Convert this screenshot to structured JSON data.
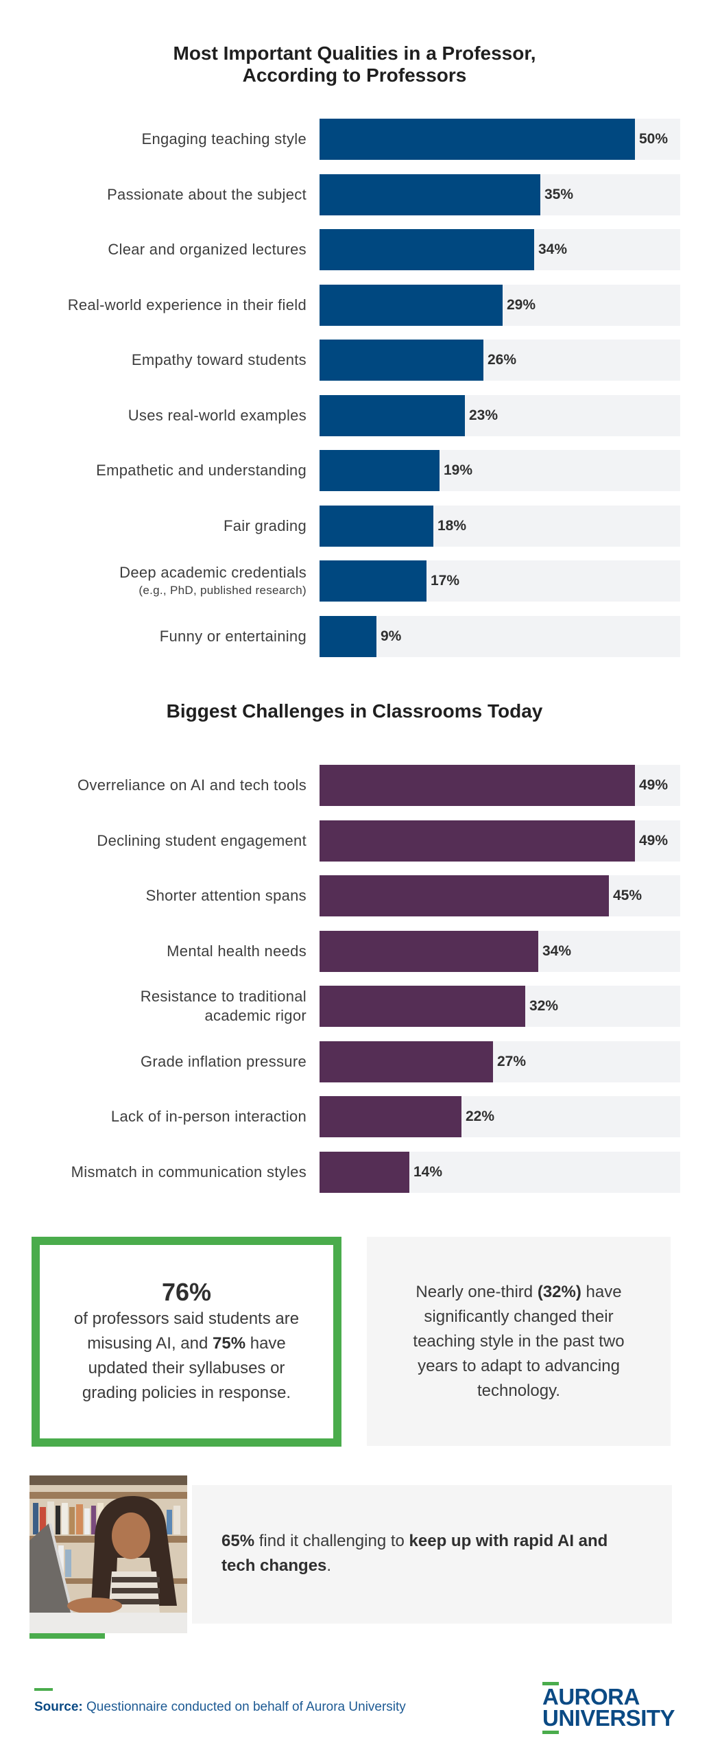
{
  "chart_data": [
    {
      "type": "bar",
      "orientation": "horizontal",
      "title": "Most Important Qualities in a Professor, According to Professors",
      "title_lines": [
        "Most Important Qualities in a Professor,",
        "According to Professors"
      ],
      "color": "#004880",
      "unit": "%",
      "categories": [
        "Engaging teaching style",
        "Passionate about the subject",
        "Clear and organized lectures",
        "Real-world experience in their field",
        "Empathy toward students",
        "Uses real-world examples",
        "Empathetic and understanding",
        "Fair grading",
        "Deep academic credentials (e.g., PhD, published research)",
        "Funny or entertaining"
      ],
      "items": [
        {
          "label": "Engaging teaching style",
          "sublabel": "",
          "value": 50,
          "value_label": "50%"
        },
        {
          "label": "Passionate about the subject",
          "sublabel": "",
          "value": 35,
          "value_label": "35%"
        },
        {
          "label": "Clear and organized lectures",
          "sublabel": "",
          "value": 34,
          "value_label": "34%"
        },
        {
          "label": "Real-world experience in their field",
          "sublabel": "",
          "value": 29,
          "value_label": "29%"
        },
        {
          "label": "Empathy toward students",
          "sublabel": "",
          "value": 26,
          "value_label": "26%"
        },
        {
          "label": "Uses real-world examples",
          "sublabel": "",
          "value": 23,
          "value_label": "23%"
        },
        {
          "label": "Empathetic and understanding",
          "sublabel": "",
          "value": 19,
          "value_label": "19%"
        },
        {
          "label": "Fair grading",
          "sublabel": "",
          "value": 18,
          "value_label": "18%"
        },
        {
          "label": "Deep academic credentials",
          "sublabel": "(e.g., PhD, published research)",
          "value": 17,
          "value_label": "17%"
        },
        {
          "label": "Funny or entertaining",
          "sublabel": "",
          "value": 9,
          "value_label": "9%"
        }
      ],
      "values": [
        50,
        35,
        34,
        29,
        26,
        23,
        19,
        18,
        17,
        9
      ],
      "xlim": [
        0,
        57
      ],
      "grid": false,
      "legend": "none"
    },
    {
      "type": "bar",
      "orientation": "horizontal",
      "title": "Biggest Challenges in Classrooms Today",
      "title_lines": [
        "Biggest Challenges in Classrooms Today"
      ],
      "color": "#552e55",
      "unit": "%",
      "categories": [
        "Overreliance on AI and tech tools",
        "Declining student engagement",
        "Shorter attention spans",
        "Mental health needs",
        "Resistance to traditional academic rigor",
        "Grade inflation pressure",
        "Lack of in-person interaction",
        "Mismatch in communication styles"
      ],
      "items": [
        {
          "label": "Overreliance on AI and tech tools",
          "sublabel": "",
          "value": 49,
          "value_label": "49%"
        },
        {
          "label": "Declining student engagement",
          "sublabel": "",
          "value": 49,
          "value_label": "49%"
        },
        {
          "label": "Shorter attention spans",
          "sublabel": "",
          "value": 45,
          "value_label": "45%"
        },
        {
          "label": "Mental health needs",
          "sublabel": "",
          "value": 34,
          "value_label": "34%"
        },
        {
          "label": "Resistance to traditional",
          "sublabel": "academic rigor",
          "value": 32,
          "value_label": "32%"
        },
        {
          "label": "Grade inflation pressure",
          "sublabel": "",
          "value": 27,
          "value_label": "27%"
        },
        {
          "label": "Lack of in-person interaction",
          "sublabel": "",
          "value": 22,
          "value_label": "22%"
        },
        {
          "label": "Mismatch in communication styles",
          "sublabel": "",
          "value": 14,
          "value_label": "14%"
        }
      ],
      "values": [
        49,
        49,
        45,
        34,
        32,
        27,
        22,
        14
      ],
      "xlim": [
        0,
        56
      ],
      "grid": false,
      "legend": "none"
    }
  ],
  "callouts": {
    "misuse": {
      "headline": "76%",
      "text_before": "of professors said students are misusing AI, and ",
      "bold": "75%",
      "text_after": " have updated their syllabuses or grading policies in response.",
      "border_color": "#4aac4c"
    },
    "teaching_change": {
      "text_before": "Nearly one-third ",
      "bold": "(32%)",
      "text_after": " have significantly changed their teaching style in the past two years to adapt to advancing technology."
    },
    "keep_up": {
      "bold1": "65%",
      "text_mid": " find it challenging to ",
      "bold2": "keep up with rapid AI and tech changes",
      "text_after": "."
    },
    "photo_alt": "Student typing on a laptop in front of bookshelves"
  },
  "footer": {
    "source_label": "Source:",
    "source_text": " Questionnaire conducted on behalf of Aurora University",
    "logo_line1": "AURORA",
    "logo_line2": "UNIVERSITY",
    "brand_color": "#0b4a84",
    "accent_color": "#4aac4c"
  }
}
